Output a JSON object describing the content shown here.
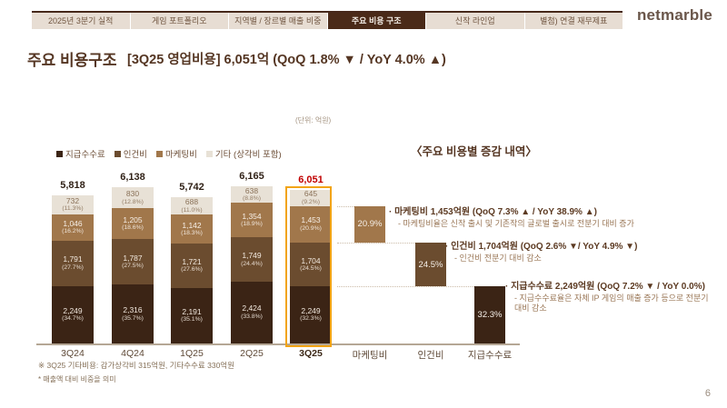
{
  "colors": {
    "accent_dark_brown": "#46281a",
    "active_tab_bg": "#4a2a18",
    "highlight_outline": "#f2a413",
    "highlight_total": "#c00000",
    "title_brown": "#553623"
  },
  "tabs": [
    {
      "label": "2025년 3분기 실적",
      "active": false
    },
    {
      "label": "게임 포트폴리오",
      "active": false
    },
    {
      "label": "지역별 / 장르별 매출 비중",
      "active": false
    },
    {
      "label": "주요 비용 구조",
      "active": true
    },
    {
      "label": "신작 라인업",
      "active": false
    },
    {
      "label": "별첨) 연결 재무제표",
      "active": false
    }
  ],
  "logo": "netmarble",
  "header": {
    "title": "주요 비용구조",
    "subtitle": "[3Q25 영업비용] 6,051억 (QoQ 1.8% ▼ / YoY 4.0% ▲)"
  },
  "unit_note": "(단위: 억원)",
  "legend": {
    "items": [
      {
        "label": "지급수수료"
      },
      {
        "label": "인건비"
      },
      {
        "label": "마케팅비"
      },
      {
        "label": "기타 (상각비 포함)"
      }
    ]
  },
  "right_panel_title": "〈주요 비용별 증감 내역〉",
  "chart_data": {
    "type": "bar",
    "subtype": "stacked-quarterly-with-waterfall-breakout",
    "unit": "억원",
    "title": "주요 비용구조",
    "categories": [
      "3Q24",
      "4Q24",
      "1Q25",
      "2Q25",
      "3Q25"
    ],
    "series": [
      {
        "name": "지급수수료",
        "color": "#3b2415",
        "text_color": "#f2e9df",
        "values": [
          2249,
          2316,
          2191,
          2424,
          2249
        ],
        "pcts": [
          "34.7%",
          "35.7%",
          "35.1%",
          "33.8%",
          "32.3%"
        ]
      },
      {
        "name": "인건비",
        "color": "#6b4c2f",
        "text_color": "#f2e9df",
        "values": [
          1791,
          1787,
          1721,
          1749,
          1704
        ],
        "pcts": [
          "27.7%",
          "27.5%",
          "27.6%",
          "24.4%",
          "24.5%"
        ]
      },
      {
        "name": "마케팅비",
        "color": "#a1774b",
        "text_color": "#f7f0e8",
        "values": [
          1046,
          1205,
          1142,
          1354,
          1453
        ],
        "pcts": [
          "16.2%",
          "18.6%",
          "18.3%",
          "18.9%",
          "20.9%"
        ]
      },
      {
        "name": "기타",
        "color": "#e8e1d6",
        "text_color": "#8a7158",
        "values": [
          732,
          830,
          688,
          638,
          645
        ],
        "pcts": [
          "11.3%",
          "12.8%",
          "11.0%",
          "8.8%",
          "9.2%"
        ]
      }
    ],
    "totals": [
      "5,818",
      "6,138",
      "5,742",
      "6,165",
      "6,051"
    ],
    "highlight_index": 4,
    "waterfall_order": [
      "마케팅비",
      "인건비",
      "지급수수료"
    ],
    "grid": false,
    "legend_position": "top-left",
    "pct_meaning": "매출액 대비 비중"
  },
  "annotations": [
    {
      "title": "마케팅비 1,453억원 (QoQ 7.3% ▲ / YoY 38.9% ▲)",
      "desc": "- 마케팅비율은 신작 출시 및 기존작의 글로벌 출시로 전분기 대비 증가"
    },
    {
      "title": "인건비 1,704억원 (QoQ 2.6% ▼/ YoY 4.9% ▼)",
      "desc": "- 인건비 전분기 대비 감소"
    },
    {
      "title": "지급수수료 2,249억원 (QoQ 7.2% ▼ / YoY 0.0%)",
      "desc": "- 지급수수료율은 자체 IP 게임의 매출 증가 등으로 전분기 대비 감소"
    }
  ],
  "footnotes": [
    "※ 3Q25 기타비용: 감가상각비 315억원, 기타수수료 330억원",
    "* 매출액 대비 비중을 의미"
  ],
  "page_number": "6"
}
